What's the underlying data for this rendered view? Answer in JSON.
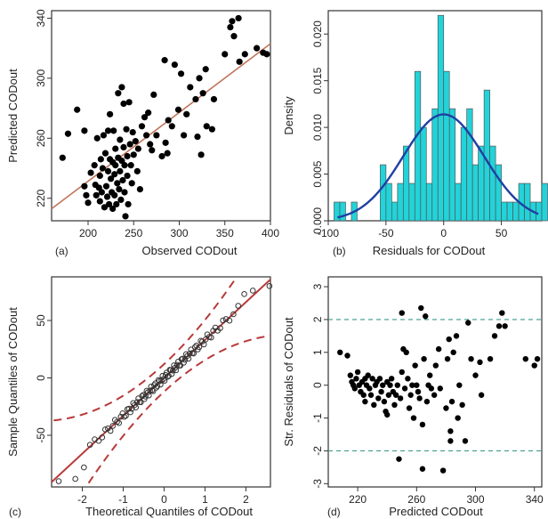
{
  "chart_data": [
    {
      "panel": "(a)",
      "type": "scatter",
      "xlabel": "Observed CODout",
      "ylabel": "Predicted CODout",
      "xlim": [
        160,
        400
      ],
      "ylim": [
        205,
        345
      ],
      "xticks": [
        200,
        250,
        300,
        350,
        400
      ],
      "yticks": [
        220,
        260,
        300,
        340
      ],
      "marker_color": "#000000",
      "fit_line": {
        "color": "#c0745a",
        "points": [
          [
            160,
            213
          ],
          [
            400,
            323
          ]
        ]
      },
      "points": [
        [
          172,
          247
        ],
        [
          178,
          263
        ],
        [
          188,
          279
        ],
        [
          196,
          265
        ],
        [
          196,
          228
        ],
        [
          198,
          222
        ],
        [
          200,
          217
        ],
        [
          203,
          237
        ],
        [
          207,
          242
        ],
        [
          208,
          229
        ],
        [
          209,
          222
        ],
        [
          210,
          260
        ],
        [
          212,
          227
        ],
        [
          213,
          235
        ],
        [
          213,
          218
        ],
        [
          214,
          246
        ],
        [
          215,
          224
        ],
        [
          216,
          240
        ],
        [
          217,
          262
        ],
        [
          218,
          214
        ],
        [
          219,
          250
        ],
        [
          220,
          228
        ],
        [
          221,
          221
        ],
        [
          222,
          265
        ],
        [
          222,
          238
        ],
        [
          223,
          216
        ],
        [
          224,
          276
        ],
        [
          224,
          246
        ],
        [
          225,
          233
        ],
        [
          226,
          224
        ],
        [
          227,
          244
        ],
        [
          227,
          213
        ],
        [
          228,
          265
        ],
        [
          229,
          236
        ],
        [
          229,
          222
        ],
        [
          230,
          253
        ],
        [
          230,
          242
        ],
        [
          231,
          216
        ],
        [
          232,
          230
        ],
        [
          233,
          290
        ],
        [
          233,
          247
        ],
        [
          234,
          226
        ],
        [
          235,
          259
        ],
        [
          235,
          238
        ],
        [
          236,
          219
        ],
        [
          237,
          294
        ],
        [
          237,
          245
        ],
        [
          238,
          232
        ],
        [
          239,
          283
        ],
        [
          239,
          254
        ],
        [
          240,
          242
        ],
        [
          240,
          224
        ],
        [
          241,
          208
        ],
        [
          242,
          266
        ],
        [
          243,
          248
        ],
        [
          243,
          235
        ],
        [
          244,
          216
        ],
        [
          245,
          284
        ],
        [
          246,
          256
        ],
        [
          247,
          242
        ],
        [
          248,
          230
        ],
        [
          249,
          264
        ],
        [
          250,
          249
        ],
        [
          252,
          258
        ],
        [
          254,
          238
        ],
        [
          255,
          253
        ],
        [
          257,
          226
        ],
        [
          259,
          268
        ],
        [
          262,
          274
        ],
        [
          264,
          262
        ],
        [
          266,
          277
        ],
        [
          268,
          256
        ],
        [
          270,
          252
        ],
        [
          272,
          289
        ],
        [
          275,
          262
        ],
        [
          281,
          248
        ],
        [
          284,
          312
        ],
        [
          285,
          257
        ],
        [
          287,
          250
        ],
        [
          288,
          272
        ],
        [
          292,
          268
        ],
        [
          295,
          309
        ],
        [
          299,
          279
        ],
        [
          302,
          303
        ],
        [
          305,
          262
        ],
        [
          308,
          276
        ],
        [
          312,
          294
        ],
        [
          318,
          286
        ],
        [
          320,
          261
        ],
        [
          322,
          300
        ],
        [
          324,
          249
        ],
        [
          326,
          290
        ],
        [
          329,
          306
        ],
        [
          330,
          268
        ],
        [
          336,
          266
        ],
        [
          338,
          286
        ],
        [
          350,
          316
        ],
        [
          356,
          334
        ],
        [
          358,
          338
        ],
        [
          360,
          328
        ],
        [
          365,
          340
        ],
        [
          366,
          311
        ],
        [
          372,
          316
        ],
        [
          385,
          320
        ],
        [
          392,
          317
        ],
        [
          396,
          316
        ]
      ]
    },
    {
      "panel": "(b)",
      "type": "bar",
      "xlabel": "Residuals for CODout",
      "ylabel": "Density",
      "xlim": [
        -100,
        85
      ],
      "ylim": [
        0,
        0.0225
      ],
      "xticks": [
        -100,
        -50,
        0,
        50
      ],
      "yticks": [
        0.0,
        0.005,
        0.01,
        0.015,
        0.02
      ],
      "ytick_labels": [
        "0.000",
        "0.005",
        "0.010",
        "0.015",
        "0.020"
      ],
      "bar_color": "#22d3d9",
      "bin_width": 5,
      "bin_start": -95,
      "densities": [
        0.002,
        0.002,
        0,
        0.002,
        0,
        0,
        0,
        0,
        0.006,
        0.004,
        0.002,
        0.004,
        0.008,
        0.004,
        0.016,
        0.01,
        0.004,
        0.012,
        0.022,
        0.016,
        0.012,
        0.004,
        0.01,
        0.012,
        0.006,
        0.008,
        0.014,
        0.008,
        0.006,
        0.002,
        0.002,
        0.002,
        0.004,
        0.004,
        0.002,
        0.002,
        0.004
      ],
      "normal_curve": {
        "color": "#1f3fa3",
        "mean": 0,
        "sd": 35
      }
    },
    {
      "panel": "(c)",
      "type": "scatter",
      "xlabel": "Theoretical Quantiles of CODout",
      "ylabel": "Sample Quantiles of CODout",
      "xlim": [
        -2.75,
        2.6
      ],
      "ylim": [
        -95,
        88
      ],
      "xticks": [
        -2,
        -1,
        0,
        1,
        2
      ],
      "yticks": [
        -50,
        0,
        50
      ],
      "marker": "open-circle",
      "reference_line": {
        "color": "#b83a3a",
        "slope": 33,
        "intercept": 0
      },
      "envelope": {
        "color": "#b83a3a",
        "style": "dashed"
      }
    },
    {
      "panel": "(d)",
      "type": "scatter",
      "xlabel": "Predicted CODout",
      "ylabel": "Str. Residuals of CODout",
      "xlim": [
        200,
        345
      ],
      "ylim": [
        -3.1,
        3.3
      ],
      "xticks": [
        220,
        260,
        300,
        340
      ],
      "yticks": [
        -3,
        -2,
        -1,
        0,
        1,
        2,
        3
      ],
      "reference_lines": {
        "values": [
          2,
          -2
        ],
        "color": "#3d9a8c",
        "style": "dashed"
      },
      "points": [
        [
          208,
          1.0
        ],
        [
          213,
          0.9
        ],
        [
          215,
          0.3
        ],
        [
          216,
          0.1
        ],
        [
          217,
          0.0
        ],
        [
          218,
          -0.1
        ],
        [
          219,
          0.2
        ],
        [
          220,
          0.4
        ],
        [
          221,
          0.0
        ],
        [
          222,
          -0.2
        ],
        [
          223,
          0.1
        ],
        [
          224,
          -0.3
        ],
        [
          225,
          0.2
        ],
        [
          225,
          -0.5
        ],
        [
          226,
          0.0
        ],
        [
          227,
          0.3
        ],
        [
          228,
          -0.1
        ],
        [
          229,
          -0.3
        ],
        [
          230,
          0.2
        ],
        [
          231,
          -0.6
        ],
        [
          232,
          0.0
        ],
        [
          233,
          0.1
        ],
        [
          234,
          -0.4
        ],
        [
          235,
          0.2
        ],
        [
          236,
          -0.2
        ],
        [
          237,
          0.0
        ],
        [
          238,
          -0.5
        ],
        [
          239,
          -0.8
        ],
        [
          240,
          0.1
        ],
        [
          240,
          -0.9
        ],
        [
          241,
          -0.3
        ],
        [
          242,
          0.0
        ],
        [
          243,
          0.2
        ],
        [
          244,
          -0.2
        ],
        [
          245,
          -0.6
        ],
        [
          246,
          -0.3
        ],
        [
          247,
          0.0
        ],
        [
          248,
          -2.25
        ],
        [
          249,
          -0.4
        ],
        [
          250,
          2.2
        ],
        [
          250,
          0.4
        ],
        [
          251,
          1.1
        ],
        [
          252,
          -0.1
        ],
        [
          253,
          1.0
        ],
        [
          254,
          0.2
        ],
        [
          255,
          -0.7
        ],
        [
          256,
          -0.3
        ],
        [
          257,
          0.0
        ],
        [
          258,
          -1.0
        ],
        [
          259,
          0.6
        ],
        [
          260,
          0.0
        ],
        [
          261,
          -0.2
        ],
        [
          262,
          -0.4
        ],
        [
          263,
          2.35
        ],
        [
          264,
          -1.2
        ],
        [
          264,
          -2.55
        ],
        [
          265,
          0.8
        ],
        [
          266,
          2.1
        ],
        [
          267,
          -0.5
        ],
        [
          268,
          0.0
        ],
        [
          269,
          0.3
        ],
        [
          270,
          -0.1
        ],
        [
          272,
          -0.3
        ],
        [
          273,
          0.6
        ],
        [
          275,
          1.1
        ],
        [
          276,
          -0.1
        ],
        [
          278,
          -2.6
        ],
        [
          280,
          -0.7
        ],
        [
          281,
          0.8
        ],
        [
          282,
          1.4
        ],
        [
          283,
          -1.4
        ],
        [
          283,
          -1.7
        ],
        [
          284,
          -0.5
        ],
        [
          285,
          1.0
        ],
        [
          287,
          1.5
        ],
        [
          288,
          -1.0
        ],
        [
          289,
          0.0
        ],
        [
          291,
          -0.6
        ],
        [
          293,
          -1.7
        ],
        [
          295,
          1.9
        ],
        [
          297,
          0.8
        ],
        [
          300,
          0.3
        ],
        [
          303,
          0.7
        ],
        [
          304,
          -0.3
        ],
        [
          310,
          0.8
        ],
        [
          313,
          1.5
        ],
        [
          316,
          1.8
        ],
        [
          318,
          2.2
        ],
        [
          320,
          1.8
        ],
        [
          334,
          0.8
        ],
        [
          340,
          0.6
        ],
        [
          342,
          0.8
        ]
      ]
    }
  ],
  "panels": [
    {
      "letter": "(a)",
      "xlabel": "Observed CODout",
      "ylabel": "Predicted CODout"
    },
    {
      "letter": "(b)",
      "xlabel": "Residuals for CODout",
      "ylabel": "Density"
    },
    {
      "letter": "(c)",
      "xlabel": "Theoretical Quantiles of CODout",
      "ylabel": "Sample Quantiles of CODout"
    },
    {
      "letter": "(d)",
      "xlabel": "Predicted CODout",
      "ylabel": "Str. Residuals of CODout"
    }
  ]
}
